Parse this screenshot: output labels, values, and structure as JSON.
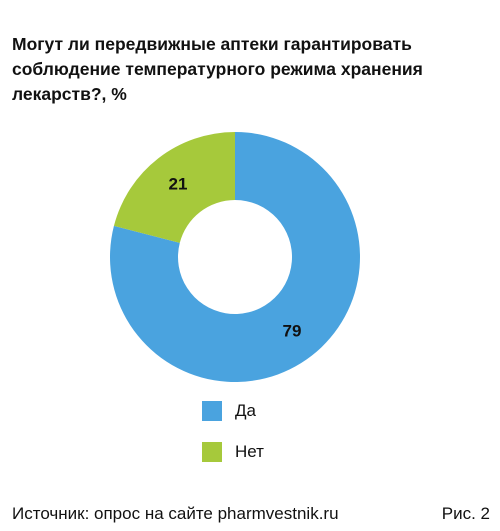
{
  "title_lines": [
    "Могут ли передвижные аптеки гарантировать",
    "соблюдение температурного режима хранения",
    "лекарств?, %"
  ],
  "chart_data": {
    "type": "pie",
    "donut": true,
    "categories": [
      "Да",
      "Нет"
    ],
    "values": [
      79,
      21
    ],
    "colors": [
      "#4aa3df",
      "#a6c93b"
    ],
    "title": "Могут ли передвижные аптеки гарантировать соблюдение температурного режима хранения лекарств?, %",
    "legend_position": "bottom"
  },
  "source": "Источник: опрос на сайте pharmvestnik.ru",
  "figure_label": "Рис. 2"
}
